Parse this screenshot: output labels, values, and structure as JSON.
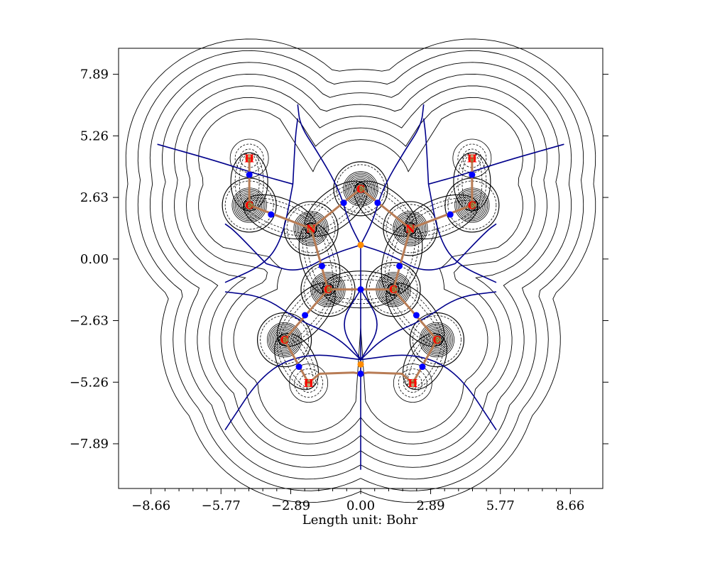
{
  "plot": {
    "xlabel": "Length unit: Bohr",
    "x_range": [
      -10.0,
      10.0
    ],
    "y_range": [
      -9.8,
      9.0
    ],
    "x_ticks": [
      -8.66,
      -5.77,
      -2.89,
      0.0,
      2.89,
      5.77,
      8.66
    ],
    "y_ticks": [
      7.89,
      5.26,
      2.63,
      0.0,
      -2.63,
      -5.26,
      -7.89
    ],
    "x_tick_labels": [
      "−8.66",
      "−5.77",
      "−2.89",
      "0.00",
      "2.89",
      "5.77",
      "8.66"
    ],
    "y_tick_labels": [
      "7.89",
      "5.26",
      "2.63",
      "0.00",
      "−2.63",
      "−5.26",
      "−7.89"
    ],
    "colors": {
      "bond_path": "#b87c55",
      "ias_lines": "#00008b",
      "contour": "#000000",
      "atom_label": "#ff0000",
      "bcp": "#0000ff",
      "rcp": "#ff8c00"
    }
  },
  "molecule": {
    "atoms": [
      {
        "id": "H1",
        "label": "H",
        "x": -4.6,
        "y": 4.3
      },
      {
        "id": "C1",
        "label": "C",
        "x": -4.6,
        "y": 2.3
      },
      {
        "id": "N1",
        "label": "N",
        "x": -2.05,
        "y": 1.3
      },
      {
        "id": "C2",
        "label": "C",
        "x": 0.0,
        "y": 3.0
      },
      {
        "id": "N2",
        "label": "N",
        "x": 2.05,
        "y": 1.3
      },
      {
        "id": "C3",
        "label": "C",
        "x": 4.6,
        "y": 2.3
      },
      {
        "id": "H2",
        "label": "H",
        "x": 4.6,
        "y": 4.3
      },
      {
        "id": "C4",
        "label": "C",
        "x": -1.35,
        "y": -1.3
      },
      {
        "id": "C5",
        "label": "C",
        "x": 1.35,
        "y": -1.3
      },
      {
        "id": "C6",
        "label": "C",
        "x": -3.15,
        "y": -3.45
      },
      {
        "id": "C7",
        "label": "C",
        "x": 3.15,
        "y": -3.45
      },
      {
        "id": "H3",
        "label": "H",
        "x": -2.15,
        "y": -5.3
      },
      {
        "id": "H4",
        "label": "H",
        "x": 2.15,
        "y": -5.3
      }
    ],
    "bonds": [
      [
        "H1",
        "C1"
      ],
      [
        "C1",
        "N1"
      ],
      [
        "N1",
        "C2"
      ],
      [
        "C2",
        "N2"
      ],
      [
        "N2",
        "C3"
      ],
      [
        "C3",
        "H2"
      ],
      [
        "N1",
        "C4"
      ],
      [
        "N2",
        "C5"
      ],
      [
        "C4",
        "C5"
      ],
      [
        "C4",
        "C6"
      ],
      [
        "C5",
        "C7"
      ],
      [
        "C6",
        "H3"
      ],
      [
        "C7",
        "H4"
      ]
    ],
    "bond_paths_extra": [
      [
        [
          -2.15,
          -5.3
        ],
        [
          -1.7,
          -4.9
        ],
        [
          -0.3,
          -4.85
        ],
        [
          0.0,
          -4.9
        ]
      ],
      [
        [
          2.15,
          -5.3
        ],
        [
          1.7,
          -4.9
        ],
        [
          0.3,
          -4.85
        ],
        [
          0.0,
          -4.9
        ]
      ]
    ],
    "bcp": [
      [
        -4.6,
        3.6
      ],
      [
        -3.7,
        1.9
      ],
      [
        -0.7,
        2.4
      ],
      [
        0.7,
        2.4
      ],
      [
        3.7,
        1.9
      ],
      [
        4.6,
        3.6
      ],
      [
        -1.6,
        -0.3
      ],
      [
        1.6,
        -0.3
      ],
      [
        0.0,
        -1.3
      ],
      [
        -2.3,
        -2.4
      ],
      [
        2.3,
        -2.4
      ],
      [
        -2.55,
        -4.6
      ],
      [
        2.55,
        -4.6
      ],
      [
        0.0,
        -4.9
      ]
    ],
    "rcp": [
      [
        0.0,
        0.6
      ],
      [
        0.0,
        -4.5
      ]
    ]
  }
}
